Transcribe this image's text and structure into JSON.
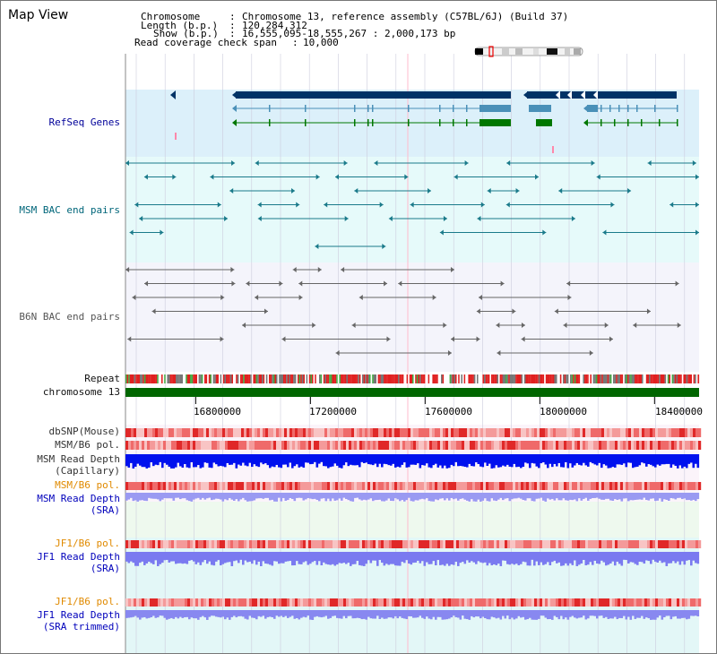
{
  "app": {
    "title": "Map View"
  },
  "header": {
    "chromosome_label": "Chromosome",
    "chromosome_value": "Chromosome 13, reference assembly (C57BL/6J) (Build 37)",
    "length_label": "Length (b.p.)",
    "length_value": "120,284,312",
    "show_label": "Show (b.p.)",
    "show_value": "16,555,095-18,555,267 : 2,000,173 bp",
    "coverage_label": "Read coverage check span",
    "coverage_value": "10,000"
  },
  "tracks": {
    "refseq": "RefSeq Genes",
    "msm_bac": "MSM BAC end pairs",
    "b6n_bac": "B6N BAC end pairs",
    "repeat": "Repeat",
    "chromosome": "chromosome 13",
    "dbsnp": "dbSNP(Mouse)",
    "msm_b6_pol_1": "MSM/B6 pol.",
    "msm_rd_cap_1": "MSM Read Depth",
    "msm_rd_cap_2": "(Capillary)",
    "msm_b6_pol_2": "MSM/B6 pol.",
    "msm_rd_sra_1": "MSM Read Depth",
    "msm_rd_sra_2": "(SRA)",
    "jf1_b6_pol_1": "JF1/B6 pol.",
    "jf1_rd_sra_1": "JF1 Read Depth",
    "jf1_rd_sra_2": "(SRA)",
    "jf1_b6_pol_2": "JF1/B6 pol.",
    "jf1_rd_trim_1": "JF1 Read Depth",
    "jf1_rd_trim_2": "(SRA trimmed)"
  },
  "axis": {
    "ticks": [
      "16800000",
      "17200000",
      "17600000",
      "18000000",
      "18400000"
    ],
    "tick_values": [
      16800000,
      17200000,
      17600000,
      18000000,
      18400000
    ]
  },
  "colors": {
    "refseq_bg": "#dcf0fa",
    "msm_bac_bg": "#e6fafa",
    "b6n_bg": "#f4f4fb",
    "gene_navy": "#003366",
    "gene_steel": "#4a90b8",
    "gene_green": "#007700",
    "msm_bac_line": "#1a7a8a",
    "b6n_line": "#666666",
    "chrom_bar": "#006600",
    "depth_blue": "#0011ee",
    "depth_light": "#7a7af0",
    "pol_red": "#ee3333"
  }
}
